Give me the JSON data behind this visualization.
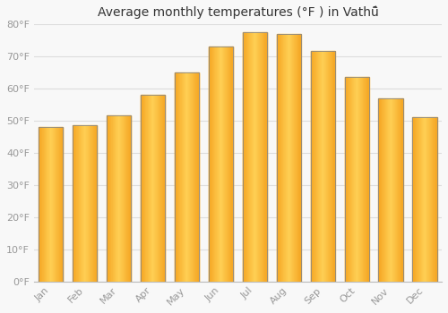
{
  "title": "Average monthly temperatures (°F ) in Vathũ̂",
  "months": [
    "Jan",
    "Feb",
    "Mar",
    "Apr",
    "May",
    "Jun",
    "Jul",
    "Aug",
    "Sep",
    "Oct",
    "Nov",
    "Dec"
  ],
  "values": [
    48,
    48.5,
    51.5,
    58,
    65,
    73,
    77.5,
    77,
    71.5,
    63.5,
    57,
    51
  ],
  "ylim": [
    0,
    80
  ],
  "yticks": [
    0,
    10,
    20,
    30,
    40,
    50,
    60,
    70,
    80
  ],
  "ytick_labels": [
    "0°F",
    "10°F",
    "20°F",
    "30°F",
    "40°F",
    "50°F",
    "60°F",
    "70°F",
    "80°F"
  ],
  "bar_color_left": "#F5A623",
  "bar_color_center": "#FFD055",
  "bar_color_right": "#F5A623",
  "bar_edge_color": "#888888",
  "background_color": "#f8f8f8",
  "plot_bg_color": "#f8f8f8",
  "grid_color": "#dddddd",
  "title_fontsize": 10,
  "tick_fontsize": 8,
  "label_color": "#999999"
}
